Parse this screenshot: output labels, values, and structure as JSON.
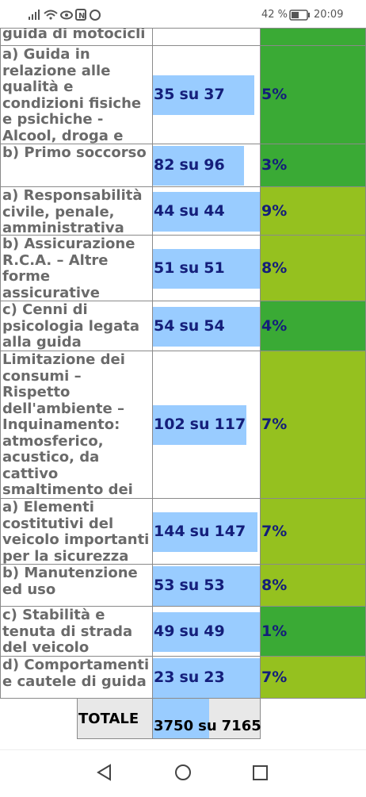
{
  "status_bar": {
    "battery": "42 %",
    "time": "20:09"
  },
  "score_separator": "su",
  "table": {
    "rows": [
      {
        "label": "guida di motocicli",
        "band": "dark"
      },
      {
        "label": "a) Guida in relazione alle qualità e condizioni fisiche e psichiche - Alcool, droga e farmaci",
        "correct": 35,
        "total": 37,
        "percent": "5%",
        "band": "dark"
      },
      {
        "label": "b) Primo soccorso",
        "correct": 82,
        "total": 96,
        "percent": "3%",
        "band": "dark"
      },
      {
        "label": "a) Responsabilità civile, penale, amministrativa",
        "correct": 44,
        "total": 44,
        "percent": "9%",
        "band": "light"
      },
      {
        "label": "b) Assicurazione R.C.A. – Altre forme assicurative legate al veicolo",
        "correct": 51,
        "total": 51,
        "percent": "8%",
        "band": "light"
      },
      {
        "label": "c) Cenni di psicologia legata alla guida",
        "correct": 54,
        "total": 54,
        "percent": "4%",
        "band": "dark"
      },
      {
        "label": "Limitazione dei consumi – Rispetto dell'ambiente – Inquinamento: atmosferico, acustico, da cattivo smaltimento dei rifiuti",
        "correct": 102,
        "total": 117,
        "percent": "7%",
        "band": "light"
      },
      {
        "label": "a) Elementi costitutivi del veicolo importanti per la sicurezza",
        "correct": 144,
        "total": 147,
        "percent": "7%",
        "band": "light"
      },
      {
        "label": "b) Manutenzione ed uso",
        "correct": 53,
        "total": 53,
        "percent": "8%",
        "band": "light"
      },
      {
        "label": "c) Stabilità e tenuta di strada del veicolo",
        "correct": 49,
        "total": 49,
        "percent": "1%",
        "band": "dark"
      },
      {
        "label": "d) Comportamenti e cautele di guida",
        "correct": 23,
        "total": 23,
        "percent": "7%",
        "band": "light"
      }
    ],
    "total_row": {
      "label": "TOTALE",
      "correct": 3750,
      "total": 7165
    }
  },
  "band_colors": {
    "dark": "#3aaa35",
    "light": "#95c11f"
  }
}
